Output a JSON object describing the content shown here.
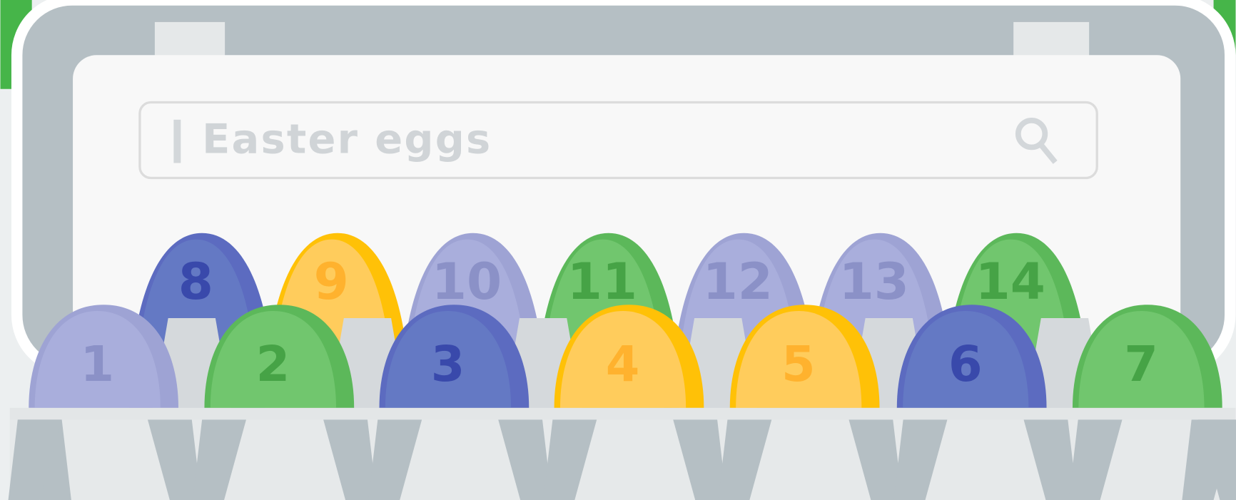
{
  "search": {
    "query": "Easter eggs"
  },
  "back_row": [
    8,
    9,
    10,
    11,
    12,
    13,
    14
  ],
  "front_row": [
    1,
    2,
    3,
    4,
    5,
    6,
    7
  ]
}
